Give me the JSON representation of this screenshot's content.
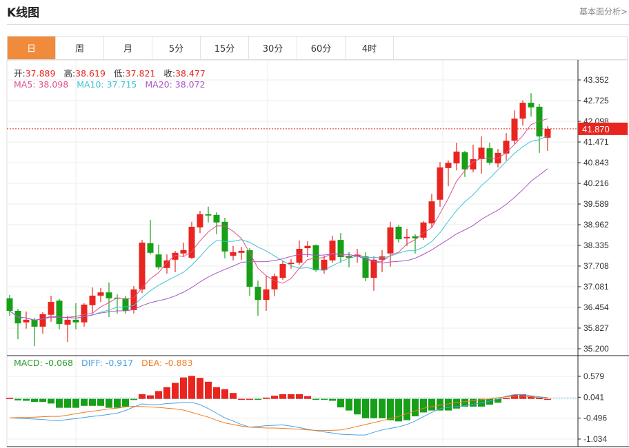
{
  "header": {
    "title": "K线图",
    "link": "基本面分析>"
  },
  "tabs": [
    {
      "label": "日",
      "active": true
    },
    {
      "label": "周"
    },
    {
      "label": "月"
    },
    {
      "label": "5分"
    },
    {
      "label": "15分"
    },
    {
      "label": "30分"
    },
    {
      "label": "60分"
    },
    {
      "label": "4时"
    }
  ],
  "info": {
    "open_label": "开:",
    "open": "37.889",
    "high_label": "高:",
    "high": "38.619",
    "low_label": "低:",
    "low": "37.821",
    "close_label": "收:",
    "close": "38.477",
    "ma5": "MA5: 38.098",
    "ma10": "MA10: 37.715",
    "ma20": "MA20: 38.072",
    "macd": "MACD: -0.068",
    "diff": "DIFF: -0.917",
    "dea": "DEA: -0.883"
  },
  "colors": {
    "up": "#e8251f",
    "down": "#17a017",
    "ma5": "#e2508c",
    "ma10": "#3cc3d3",
    "ma20": "#a855c4",
    "diff": "#4aa0e2",
    "dea": "#f07c22",
    "accent": "#f18b3c"
  },
  "chart_data": [
    {
      "type": "candlestick",
      "y_ticks": [
        "43.352",
        "42.725",
        "42.098",
        "41.471",
        "40.843",
        "40.216",
        "39.589",
        "38.962",
        "38.335",
        "37.708",
        "37.081",
        "36.454",
        "35.827",
        "35.200"
      ],
      "ylim": [
        35.2,
        43.352
      ],
      "current_price": "41.870",
      "grid": true,
      "ohlc": [
        [
          36.73,
          36.83,
          36.2,
          36.35
        ],
        [
          36.35,
          36.41,
          35.49,
          35.97
        ],
        [
          36.0,
          36.33,
          35.81,
          36.08
        ],
        [
          36.08,
          36.14,
          35.28,
          35.87
        ],
        [
          35.87,
          36.31,
          35.66,
          36.25
        ],
        [
          36.23,
          36.81,
          36.02,
          36.62
        ],
        [
          36.66,
          36.71,
          35.79,
          35.95
        ],
        [
          35.93,
          36.2,
          35.41,
          36.08
        ],
        [
          36.08,
          36.58,
          35.79,
          36.0
        ],
        [
          36.0,
          36.58,
          35.87,
          36.54
        ],
        [
          36.52,
          37.06,
          36.27,
          36.81
        ],
        [
          36.81,
          37.04,
          36.62,
          36.91
        ],
        [
          36.91,
          37.21,
          36.16,
          36.73
        ],
        [
          36.75,
          36.85,
          36.27,
          36.73
        ],
        [
          36.73,
          36.81,
          36.27,
          36.35
        ],
        [
          36.37,
          37.1,
          36.27,
          37.0
        ],
        [
          37.0,
          38.5,
          36.89,
          38.42
        ],
        [
          38.4,
          39.11,
          38.06,
          38.11
        ],
        [
          38.06,
          38.36,
          37.6,
          37.67
        ],
        [
          37.65,
          38.06,
          37.48,
          37.88
        ],
        [
          37.9,
          38.17,
          37.52,
          38.11
        ],
        [
          38.09,
          38.42,
          38.0,
          38.19
        ],
        [
          37.96,
          39.05,
          37.92,
          38.9
        ],
        [
          38.88,
          39.38,
          38.71,
          39.28
        ],
        [
          39.28,
          39.51,
          39.03,
          39.24
        ],
        [
          39.26,
          39.34,
          38.67,
          39.03
        ],
        [
          39.05,
          39.17,
          37.94,
          38.15
        ],
        [
          38.02,
          38.32,
          37.88,
          38.13
        ],
        [
          38.11,
          38.29,
          37.9,
          38.17
        ],
        [
          38.19,
          38.25,
          36.81,
          37.08
        ],
        [
          37.08,
          37.27,
          36.2,
          36.68
        ],
        [
          36.68,
          37.42,
          36.35,
          37.0
        ],
        [
          37.0,
          37.48,
          36.79,
          37.4
        ],
        [
          37.35,
          37.88,
          37.29,
          37.77
        ],
        [
          37.77,
          37.92,
          37.63,
          37.81
        ],
        [
          37.81,
          38.48,
          37.75,
          38.23
        ],
        [
          38.25,
          38.46,
          37.98,
          38.32
        ],
        [
          38.34,
          38.36,
          37.54,
          37.58
        ],
        [
          37.58,
          38.02,
          37.48,
          37.9
        ],
        [
          37.88,
          38.63,
          37.81,
          38.48
        ],
        [
          38.5,
          38.71,
          37.81,
          37.98
        ],
        [
          38.02,
          38.13,
          37.67,
          37.96
        ],
        [
          38.0,
          38.23,
          37.81,
          38.04
        ],
        [
          38.0,
          38.13,
          37.25,
          37.35
        ],
        [
          37.35,
          38.0,
          36.96,
          37.9
        ],
        [
          37.9,
          38.19,
          37.52,
          38.0
        ],
        [
          38.09,
          39.05,
          37.69,
          38.88
        ],
        [
          38.9,
          38.96,
          38.42,
          38.52
        ],
        [
          38.55,
          38.84,
          38.32,
          38.59
        ],
        [
          38.61,
          38.67,
          38.09,
          38.55
        ],
        [
          38.57,
          39.07,
          38.5,
          39.03
        ],
        [
          39.0,
          39.9,
          38.86,
          39.67
        ],
        [
          39.72,
          40.86,
          39.51,
          40.7
        ],
        [
          40.68,
          40.91,
          40.13,
          40.84
        ],
        [
          40.82,
          41.45,
          40.61,
          41.18
        ],
        [
          41.16,
          41.2,
          40.41,
          40.64
        ],
        [
          40.64,
          41.39,
          40.55,
          40.95
        ],
        [
          40.95,
          41.64,
          40.51,
          41.3
        ],
        [
          41.28,
          41.45,
          40.78,
          40.84
        ],
        [
          40.82,
          41.26,
          40.7,
          41.14
        ],
        [
          41.12,
          41.74,
          40.91,
          41.51
        ],
        [
          41.51,
          42.43,
          41.39,
          42.18
        ],
        [
          42.18,
          42.73,
          41.97,
          42.66
        ],
        [
          42.66,
          42.95,
          42.24,
          42.52
        ],
        [
          42.54,
          42.62,
          41.14,
          41.64
        ],
        [
          41.6,
          41.95,
          41.2,
          41.87
        ]
      ],
      "series": [
        {
          "name": "MA5",
          "period": 5
        },
        {
          "name": "MA10",
          "period": 10
        },
        {
          "name": "MA20",
          "period": 20
        }
      ]
    },
    {
      "type": "bar+line",
      "y_ticks": [
        "0.579",
        "0.041",
        "-0.496",
        "-1.034"
      ],
      "ylim": [
        -1.034,
        0.579
      ],
      "macd": [
        0.02,
        -0.04,
        -0.05,
        -0.08,
        -0.08,
        -0.12,
        -0.23,
        -0.23,
        -0.23,
        -0.18,
        -0.18,
        -0.18,
        -0.23,
        -0.23,
        -0.2,
        -0.03,
        0.12,
        0.09,
        0.2,
        0.3,
        0.41,
        0.55,
        0.59,
        0.54,
        0.44,
        0.3,
        0.25,
        0.15,
        0.0,
        0.0,
        -0.01,
        0.03,
        0.08,
        0.12,
        0.12,
        0.12,
        0.07,
        -0.01,
        -0.01,
        -0.05,
        -0.22,
        -0.3,
        -0.4,
        -0.5,
        -0.5,
        -0.5,
        -0.55,
        -0.58,
        -0.55,
        -0.45,
        -0.35,
        -0.3,
        -0.3,
        -0.3,
        -0.25,
        -0.2,
        -0.2,
        -0.2,
        -0.15,
        -0.1,
        0.02,
        0.1,
        0.12,
        0.07,
        0.02,
        0.0
      ],
      "diff": [
        -0.49,
        -0.5,
        -0.51,
        -0.52,
        -0.53,
        -0.55,
        -0.56,
        -0.53,
        -0.51,
        -0.48,
        -0.45,
        -0.43,
        -0.4,
        -0.37,
        -0.3,
        -0.21,
        -0.13,
        -0.15,
        -0.15,
        -0.12,
        -0.11,
        -0.1,
        -0.09,
        -0.15,
        -0.25,
        -0.37,
        -0.49,
        -0.57,
        -0.66,
        -0.73,
        -0.71,
        -0.69,
        -0.68,
        -0.67,
        -0.7,
        -0.74,
        -0.78,
        -0.82,
        -0.85,
        -0.88,
        -0.91,
        -0.92,
        -0.93,
        -0.93,
        -0.86,
        -0.8,
        -0.76,
        -0.72,
        -0.66,
        -0.57,
        -0.46,
        -0.35,
        -0.25,
        -0.22,
        -0.2,
        -0.18,
        -0.14,
        -0.1,
        -0.06,
        -0.01,
        0.07,
        0.11,
        0.11,
        0.08,
        0.05,
        0.03
      ],
      "dea": [
        -0.49,
        -0.48,
        -0.48,
        -0.47,
        -0.46,
        -0.45,
        -0.45,
        -0.42,
        -0.38,
        -0.35,
        -0.32,
        -0.29,
        -0.26,
        -0.24,
        -0.21,
        -0.19,
        -0.2,
        -0.21,
        -0.22,
        -0.24,
        -0.26,
        -0.29,
        -0.35,
        -0.41,
        -0.47,
        -0.55,
        -0.62,
        -0.66,
        -0.7,
        -0.73,
        -0.74,
        -0.75,
        -0.75,
        -0.76,
        -0.77,
        -0.78,
        -0.8,
        -0.81,
        -0.81,
        -0.81,
        -0.8,
        -0.76,
        -0.71,
        -0.66,
        -0.61,
        -0.56,
        -0.51,
        -0.45,
        -0.38,
        -0.31,
        -0.24,
        -0.2,
        -0.16,
        -0.13,
        -0.1,
        -0.07,
        -0.05,
        -0.02,
        0.0,
        0.03,
        0.05,
        0.07,
        0.07,
        0.05,
        0.03,
        0.02
      ]
    }
  ]
}
